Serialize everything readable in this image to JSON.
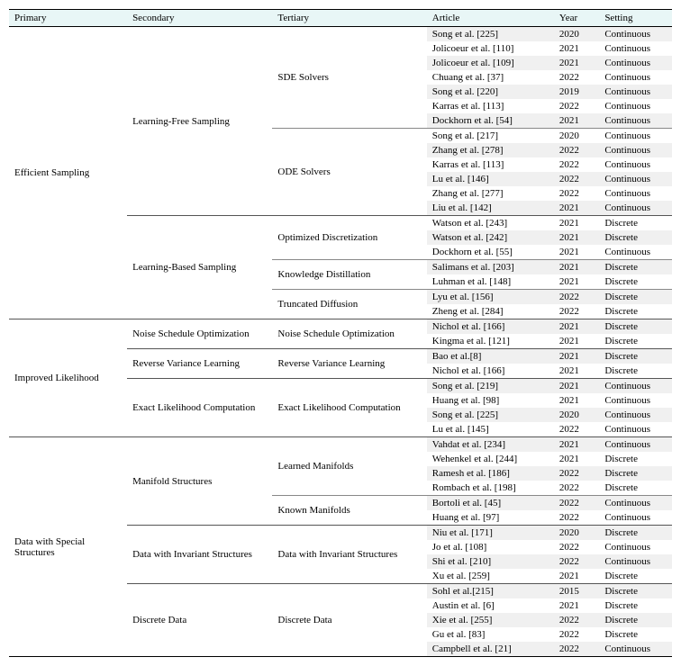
{
  "headers": {
    "primary": "Primary",
    "secondary": "Secondary",
    "tertiary": "Tertiary",
    "article": "Article",
    "year": "Year",
    "setting": "Setting"
  },
  "colors": {
    "header_bg": "#e8f6f6",
    "alt_row_bg": "#f0f0f0",
    "border": "#000000",
    "thin_border": "#555555"
  },
  "typography": {
    "font_family": "Times New Roman",
    "font_size_pt": 8
  },
  "table": {
    "columns": [
      "Primary",
      "Secondary",
      "Tertiary",
      "Article",
      "Year",
      "Setting"
    ],
    "rows": [
      {
        "primary": "Efficient Sampling",
        "secondary": "Learning-Free Sampling",
        "tertiary": "SDE Solvers",
        "article": "Song et al. [225]",
        "year": "2020",
        "setting": "Continuous"
      },
      {
        "primary": "Efficient Sampling",
        "secondary": "Learning-Free Sampling",
        "tertiary": "SDE Solvers",
        "article": "Jolicoeur et al. [110]",
        "year": "2021",
        "setting": "Continuous"
      },
      {
        "primary": "Efficient Sampling",
        "secondary": "Learning-Free Sampling",
        "tertiary": "SDE Solvers",
        "article": "Jolicoeur et al. [109]",
        "year": "2021",
        "setting": "Continuous"
      },
      {
        "primary": "Efficient Sampling",
        "secondary": "Learning-Free Sampling",
        "tertiary": "SDE Solvers",
        "article": "Chuang et al. [37]",
        "year": "2022",
        "setting": "Continuous"
      },
      {
        "primary": "Efficient Sampling",
        "secondary": "Learning-Free Sampling",
        "tertiary": "SDE Solvers",
        "article": "Song et al. [220]",
        "year": "2019",
        "setting": "Continuous"
      },
      {
        "primary": "Efficient Sampling",
        "secondary": "Learning-Free Sampling",
        "tertiary": "SDE Solvers",
        "article": "Karras et al. [113]",
        "year": "2022",
        "setting": "Continuous"
      },
      {
        "primary": "Efficient Sampling",
        "secondary": "Learning-Free Sampling",
        "tertiary": "SDE Solvers",
        "article": "Dockhorn et al. [54]",
        "year": "2021",
        "setting": "Continuous"
      },
      {
        "primary": "Efficient Sampling",
        "secondary": "Learning-Free Sampling",
        "tertiary": "ODE Solvers",
        "article": "Song et al. [217]",
        "year": "2020",
        "setting": "Continuous"
      },
      {
        "primary": "Efficient Sampling",
        "secondary": "Learning-Free Sampling",
        "tertiary": "ODE Solvers",
        "article": "Zhang et al. [278]",
        "year": "2022",
        "setting": "Continuous"
      },
      {
        "primary": "Efficient Sampling",
        "secondary": "Learning-Free Sampling",
        "tertiary": "ODE Solvers",
        "article": "Karras et al. [113]",
        "year": "2022",
        "setting": "Continuous"
      },
      {
        "primary": "Efficient Sampling",
        "secondary": "Learning-Free Sampling",
        "tertiary": "ODE Solvers",
        "article": "Lu et al. [146]",
        "year": "2022",
        "setting": "Continuous"
      },
      {
        "primary": "Efficient Sampling",
        "secondary": "Learning-Free Sampling",
        "tertiary": "ODE Solvers",
        "article": "Zhang et al. [277]",
        "year": "2022",
        "setting": "Continuous"
      },
      {
        "primary": "Efficient Sampling",
        "secondary": "Learning-Free Sampling",
        "tertiary": "ODE Solvers",
        "article": "Liu et al. [142]",
        "year": "2021",
        "setting": "Continuous"
      },
      {
        "primary": "Efficient Sampling",
        "secondary": "Learning-Based Sampling",
        "tertiary": "Optimized Discretization",
        "article": "Watson et al. [243]",
        "year": "2021",
        "setting": "Discrete"
      },
      {
        "primary": "Efficient Sampling",
        "secondary": "Learning-Based Sampling",
        "tertiary": "Optimized Discretization",
        "article": "Watson et al. [242]",
        "year": "2021",
        "setting": "Discrete"
      },
      {
        "primary": "Efficient Sampling",
        "secondary": "Learning-Based Sampling",
        "tertiary": "Optimized Discretization",
        "article": "Dockhorn et al. [55]",
        "year": "2021",
        "setting": "Continuous"
      },
      {
        "primary": "Efficient Sampling",
        "secondary": "Learning-Based Sampling",
        "tertiary": "Knowledge Distillation",
        "article": "Salimans et al. [203]",
        "year": "2021",
        "setting": "Discrete"
      },
      {
        "primary": "Efficient Sampling",
        "secondary": "Learning-Based Sampling",
        "tertiary": "Knowledge Distillation",
        "article": "Luhman et al. [148]",
        "year": "2021",
        "setting": "Discrete"
      },
      {
        "primary": "Efficient Sampling",
        "secondary": "Learning-Based Sampling",
        "tertiary": "Truncated Diffusion",
        "article": "Lyu et al. [156]",
        "year": "2022",
        "setting": "Discrete"
      },
      {
        "primary": "Efficient Sampling",
        "secondary": "Learning-Based Sampling",
        "tertiary": "Truncated Diffusion",
        "article": "Zheng et al. [284]",
        "year": "2022",
        "setting": "Discrete"
      },
      {
        "primary": "Improved Likelihood",
        "secondary": "Noise Schedule Optimization",
        "tertiary": "Noise Schedule Optimization",
        "article": "Nichol et al. [166]",
        "year": "2021",
        "setting": "Discrete"
      },
      {
        "primary": "Improved Likelihood",
        "secondary": "Noise Schedule Optimization",
        "tertiary": "Noise Schedule Optimization",
        "article": "Kingma et al. [121]",
        "year": "2021",
        "setting": "Discrete"
      },
      {
        "primary": "Improved Likelihood",
        "secondary": "Reverse Variance Learning",
        "tertiary": "Reverse Variance Learning",
        "article": "Bao et al.[8]",
        "year": "2021",
        "setting": "Discrete"
      },
      {
        "primary": "Improved Likelihood",
        "secondary": "Reverse Variance Learning",
        "tertiary": "Reverse Variance Learning",
        "article": "Nichol et al. [166]",
        "year": "2021",
        "setting": "Discrete"
      },
      {
        "primary": "Improved Likelihood",
        "secondary": "Exact Likelihood Computation",
        "tertiary": "Exact Likelihood Computation",
        "article": "Song et al. [219]",
        "year": "2021",
        "setting": "Continuous"
      },
      {
        "primary": "Improved Likelihood",
        "secondary": "Exact Likelihood Computation",
        "tertiary": "Exact Likelihood Computation",
        "article": "Huang et al. [98]",
        "year": "2021",
        "setting": "Continuous"
      },
      {
        "primary": "Improved Likelihood",
        "secondary": "Exact Likelihood Computation",
        "tertiary": "Exact Likelihood Computation",
        "article": "Song et al. [225]",
        "year": "2020",
        "setting": "Continuous"
      },
      {
        "primary": "Improved Likelihood",
        "secondary": "Exact Likelihood Computation",
        "tertiary": "Exact Likelihood Computation",
        "article": "Lu et al. [145]",
        "year": "2022",
        "setting": "Continuous"
      },
      {
        "primary": "Data with Special Structures",
        "secondary": "Manifold Structures",
        "tertiary": "Learned Manifolds",
        "article": "Vahdat et al. [234]",
        "year": "2021",
        "setting": "Continuous"
      },
      {
        "primary": "Data with Special Structures",
        "secondary": "Manifold Structures",
        "tertiary": "Learned Manifolds",
        "article": "Wehenkel et al. [244]",
        "year": "2021",
        "setting": "Discrete"
      },
      {
        "primary": "Data with Special Structures",
        "secondary": "Manifold Structures",
        "tertiary": "Learned Manifolds",
        "article": "Ramesh et al. [186]",
        "year": "2022",
        "setting": "Discrete"
      },
      {
        "primary": "Data with Special Structures",
        "secondary": "Manifold Structures",
        "tertiary": "Learned Manifolds",
        "article": "Rombach et al. [198]",
        "year": "2022",
        "setting": "Discrete"
      },
      {
        "primary": "Data with Special Structures",
        "secondary": "Manifold Structures",
        "tertiary": "Known Manifolds",
        "article": "Bortoli et al. [45]",
        "year": "2022",
        "setting": "Continuous"
      },
      {
        "primary": "Data with Special Structures",
        "secondary": "Manifold Structures",
        "tertiary": "Known Manifolds",
        "article": "Huang et al. [97]",
        "year": "2022",
        "setting": "Continuous"
      },
      {
        "primary": "Data with Special Structures",
        "secondary": "Data with Invariant Structures",
        "tertiary": "Data with Invariant Structures",
        "article": "Niu et al. [171]",
        "year": "2020",
        "setting": "Discrete"
      },
      {
        "primary": "Data with Special Structures",
        "secondary": "Data with Invariant Structures",
        "tertiary": "Data with Invariant Structures",
        "article": "Jo et al. [108]",
        "year": "2022",
        "setting": "Continuous"
      },
      {
        "primary": "Data with Special Structures",
        "secondary": "Data with Invariant Structures",
        "tertiary": "Data with Invariant Structures",
        "article": "Shi et al. [210]",
        "year": "2022",
        "setting": "Continuous"
      },
      {
        "primary": "Data with Special Structures",
        "secondary": "Data with Invariant Structures",
        "tertiary": "Data with Invariant Structures",
        "article": "Xu et al. [259]",
        "year": "2021",
        "setting": "Discrete"
      },
      {
        "primary": "Data with Special Structures",
        "secondary": "Discrete Data",
        "tertiary": "Discrete Data",
        "article": "Sohl et al.[215]",
        "year": "2015",
        "setting": "Discrete"
      },
      {
        "primary": "Data with Special Structures",
        "secondary": "Discrete Data",
        "tertiary": "Discrete Data",
        "article": "Austin et al. [6]",
        "year": "2021",
        "setting": "Discrete"
      },
      {
        "primary": "Data with Special Structures",
        "secondary": "Discrete Data",
        "tertiary": "Discrete Data",
        "article": "Xie et al. [255]",
        "year": "2022",
        "setting": "Discrete"
      },
      {
        "primary": "Data with Special Structures",
        "secondary": "Discrete Data",
        "tertiary": "Discrete Data",
        "article": "Gu et al. [83]",
        "year": "2022",
        "setting": "Discrete"
      },
      {
        "primary": "Data with Special Structures",
        "secondary": "Discrete Data",
        "tertiary": "Discrete Data",
        "article": "Campbell et al. [21]",
        "year": "2022",
        "setting": "Continuous"
      }
    ]
  }
}
